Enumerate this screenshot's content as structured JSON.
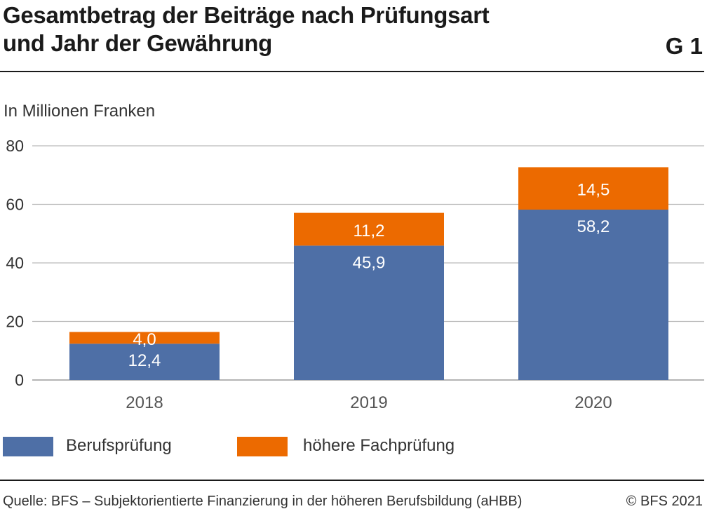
{
  "header": {
    "title_line1": "Gesamtbetrag der Beiträge nach Prüfungsart",
    "title_line2": "und Jahr der Gewährung",
    "figure_number": "G 1"
  },
  "chart_data": {
    "type": "bar",
    "stacked": true,
    "ylabel": "In Millionen Franken",
    "ylim": [
      0,
      80
    ],
    "yticks": [
      0,
      20,
      40,
      60,
      80
    ],
    "grid": true,
    "legend_position": "bottom-left",
    "categories": [
      "2018",
      "2019",
      "2020"
    ],
    "series": [
      {
        "name": "Berufsprüfung",
        "color": "#4e6fa6",
        "values": [
          12.4,
          45.9,
          58.2
        ],
        "labels": [
          "12,4",
          "45,9",
          "58,2"
        ]
      },
      {
        "name": "höhere Fachprüfung",
        "color": "#ec6a00",
        "values": [
          4.0,
          11.2,
          14.5
        ],
        "labels": [
          "4,0",
          "11,2",
          "14,5"
        ]
      }
    ]
  },
  "footer": {
    "source": "Quelle: BFS – Subjektorientierte Finanzierung in der höheren Berufsbildung (aHBB)",
    "copyright": "© BFS 2021"
  },
  "colors": {
    "text": "#222222",
    "grid": "#bbbbbb",
    "label_on_bar": "#ffffff"
  }
}
